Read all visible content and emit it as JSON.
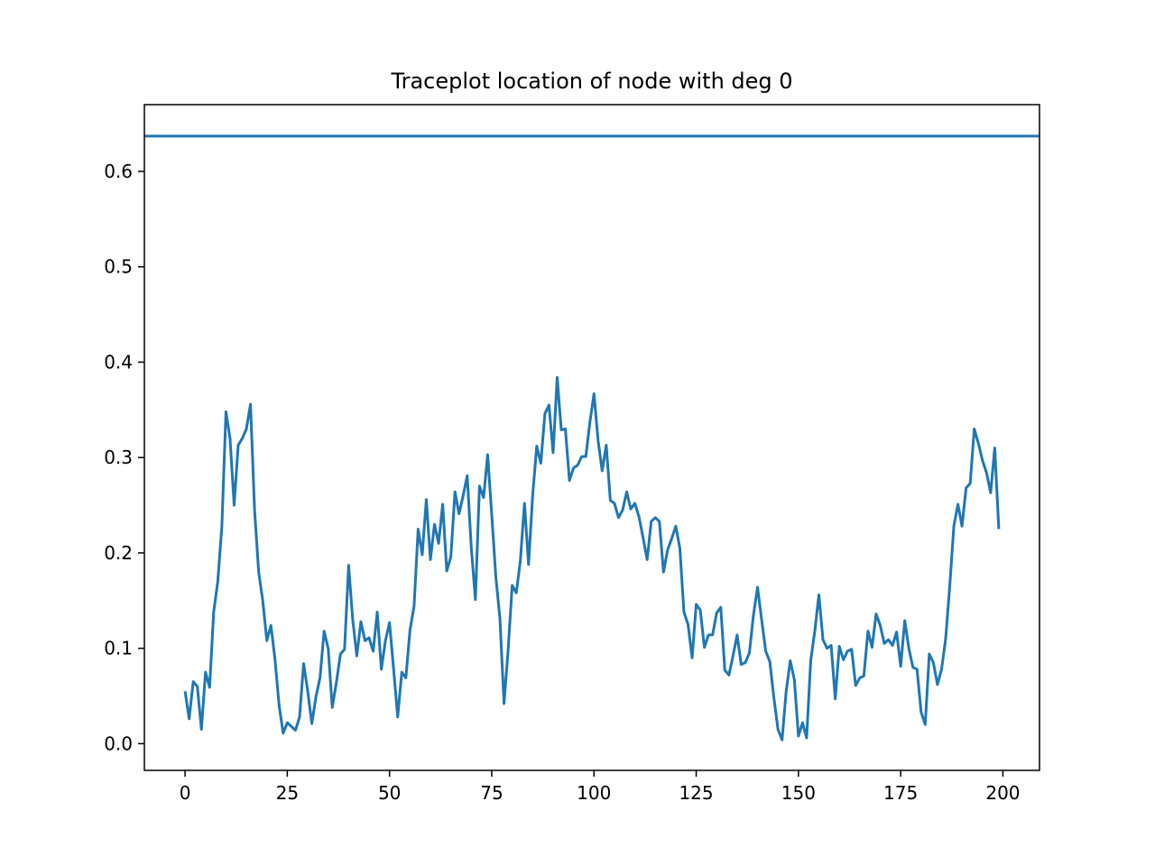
{
  "chart_data": {
    "type": "line",
    "title": "Traceplot location of node with deg 0",
    "xlabel": "",
    "ylabel": "",
    "xlim": [
      -9.95,
      208.95
    ],
    "ylim": [
      -0.028,
      0.67
    ],
    "x_ticks": [
      0,
      25,
      50,
      75,
      100,
      125,
      150,
      175,
      200
    ],
    "y_ticks": [
      0.0,
      0.1,
      0.2,
      0.3,
      0.4,
      0.5,
      0.6
    ],
    "y_tick_labels": [
      "0.0",
      "0.1",
      "0.2",
      "0.3",
      "0.4",
      "0.5",
      "0.6"
    ],
    "grid": false,
    "legend": "none",
    "colors": {
      "series": "#1f77b4"
    },
    "hline": {
      "y": 0.637
    },
    "series": [
      {
        "x_start": 0,
        "values": [
          0.055,
          0.026,
          0.065,
          0.06,
          0.015,
          0.075,
          0.059,
          0.138,
          0.17,
          0.228,
          0.348,
          0.32,
          0.25,
          0.313,
          0.32,
          0.33,
          0.356,
          0.245,
          0.18,
          0.15,
          0.108,
          0.124,
          0.088,
          0.04,
          0.011,
          0.022,
          0.018,
          0.014,
          0.028,
          0.084,
          0.055,
          0.021,
          0.049,
          0.069,
          0.118,
          0.1,
          0.038,
          0.064,
          0.094,
          0.099,
          0.187,
          0.13,
          0.092,
          0.128,
          0.108,
          0.111,
          0.097,
          0.138,
          0.078,
          0.108,
          0.127,
          0.078,
          0.028,
          0.075,
          0.069,
          0.119,
          0.144,
          0.225,
          0.198,
          0.256,
          0.193,
          0.23,
          0.21,
          0.251,
          0.181,
          0.196,
          0.264,
          0.241,
          0.26,
          0.281,
          0.205,
          0.151,
          0.27,
          0.258,
          0.303,
          0.24,
          0.175,
          0.131,
          0.042,
          0.098,
          0.166,
          0.158,
          0.192,
          0.252,
          0.188,
          0.26,
          0.312,
          0.294,
          0.346,
          0.355,
          0.305,
          0.384,
          0.329,
          0.33,
          0.276,
          0.289,
          0.292,
          0.301,
          0.301,
          0.337,
          0.367,
          0.318,
          0.286,
          0.313,
          0.255,
          0.252,
          0.237,
          0.245,
          0.264,
          0.246,
          0.252,
          0.238,
          0.216,
          0.193,
          0.233,
          0.237,
          0.233,
          0.18,
          0.203,
          0.215,
          0.228,
          0.205,
          0.138,
          0.125,
          0.09,
          0.146,
          0.14,
          0.101,
          0.114,
          0.114,
          0.137,
          0.143,
          0.077,
          0.072,
          0.092,
          0.114,
          0.083,
          0.085,
          0.095,
          0.135,
          0.164,
          0.13,
          0.097,
          0.086,
          0.048,
          0.015,
          0.004,
          0.055,
          0.087,
          0.067,
          0.008,
          0.022,
          0.006,
          0.087,
          0.118,
          0.156,
          0.109,
          0.1,
          0.103,
          0.047,
          0.102,
          0.088,
          0.097,
          0.099,
          0.061,
          0.069,
          0.071,
          0.118,
          0.101,
          0.136,
          0.124,
          0.105,
          0.109,
          0.103,
          0.117,
          0.081,
          0.129,
          0.1,
          0.08,
          0.078,
          0.033,
          0.02,
          0.094,
          0.085,
          0.062,
          0.078,
          0.11,
          0.165,
          0.228,
          0.251,
          0.228,
          0.268,
          0.273,
          0.33,
          0.315,
          0.297,
          0.284,
          0.263,
          0.31,
          0.225
        ]
      }
    ]
  }
}
